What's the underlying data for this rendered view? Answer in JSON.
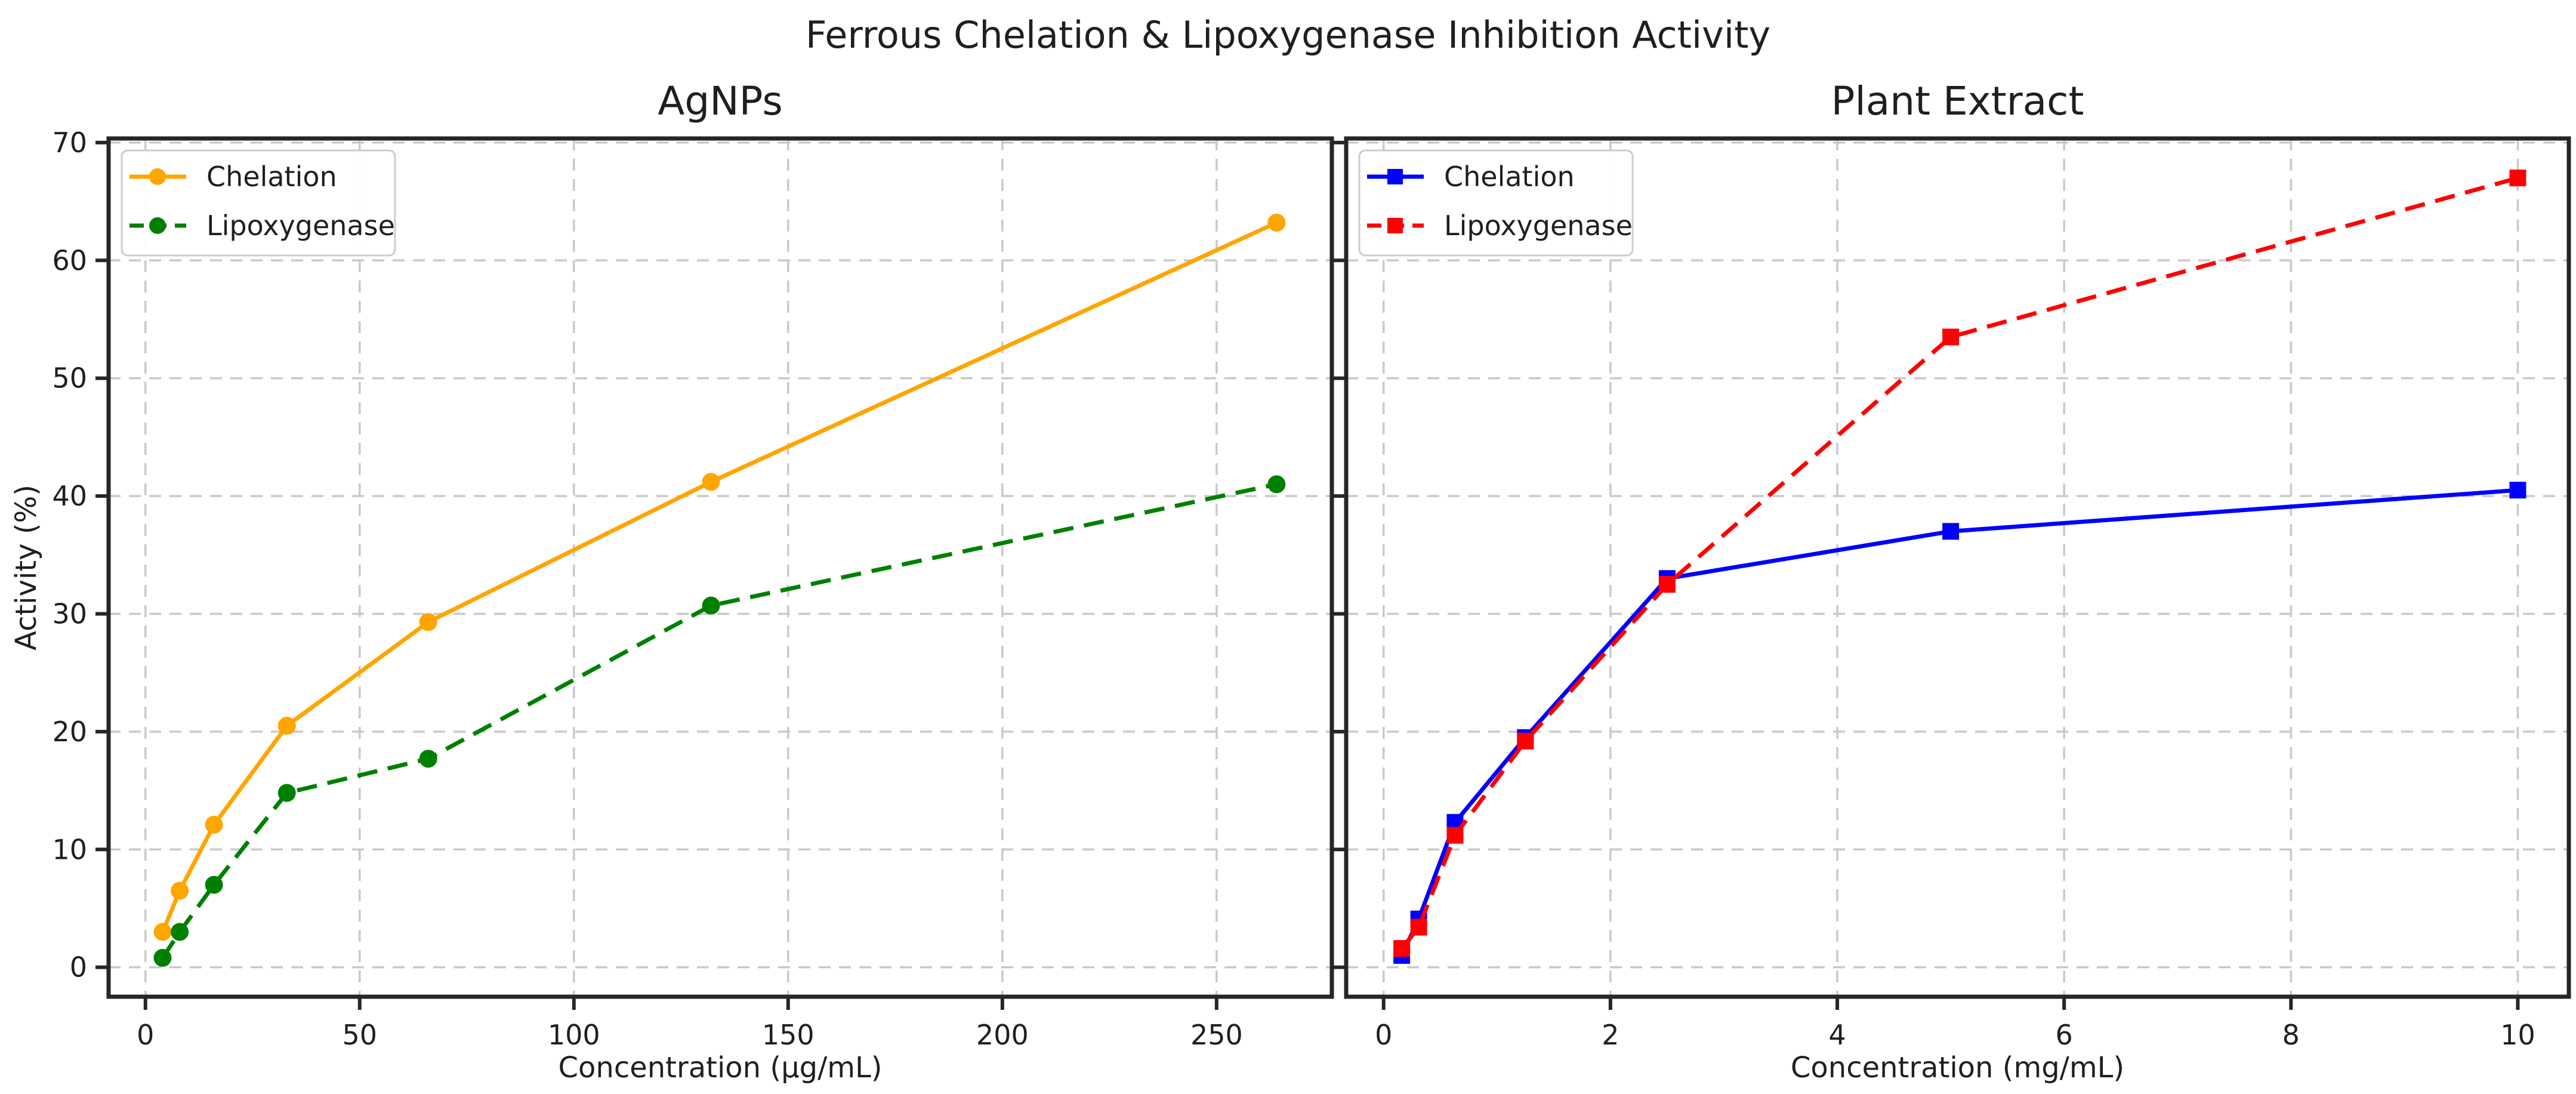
{
  "figure": {
    "title": "Ferrous Chelation & Lipoxygenase Inhibition Activity",
    "background_color": "#ffffff",
    "text_color": "#1f1f1f",
    "grid_color": "#c9c9c9",
    "spine_color": "#262626"
  },
  "chart_data": [
    {
      "type": "line",
      "title": "AgNPs",
      "xlabel": "Concentration (µg/mL)",
      "ylabel": "Activity (%)",
      "xlim": [
        -8.6,
        276.9
      ],
      "ylim": [
        -2.5,
        70.35
      ],
      "xticks": [
        0,
        50,
        100,
        150,
        200,
        250
      ],
      "yticks": [
        0,
        10,
        20,
        30,
        40,
        50,
        60,
        70
      ],
      "show_ytick_labels": true,
      "grid": true,
      "legend_position": "upper-left",
      "x": [
        4,
        8,
        16,
        33,
        66,
        132,
        264
      ],
      "series": [
        {
          "name": "Chelation",
          "color": "#FFA500",
          "linestyle": "solid",
          "marker": "circle",
          "values": [
            3.0,
            6.5,
            12.1,
            20.5,
            29.3,
            41.2,
            63.2
          ]
        },
        {
          "name": "Lipoxygenase",
          "color": "#008000",
          "linestyle": "dashed",
          "marker": "circle",
          "values": [
            0.8,
            3.0,
            7.0,
            14.8,
            17.7,
            30.7,
            41.0
          ]
        }
      ]
    },
    {
      "type": "line",
      "title": "Plant Extract",
      "xlabel": "Concentration (mg/mL)",
      "ylabel": "",
      "xlim": [
        -0.33,
        10.45
      ],
      "ylim": [
        -2.5,
        70.35
      ],
      "xticks": [
        0,
        2,
        4,
        6,
        8,
        10
      ],
      "yticks": [
        0,
        10,
        20,
        30,
        40,
        50,
        60,
        70
      ],
      "show_ytick_labels": false,
      "grid": true,
      "legend_position": "upper-left",
      "x": [
        0.16,
        0.31,
        0.63,
        1.25,
        2.5,
        5,
        10
      ],
      "series": [
        {
          "name": "Chelation",
          "color": "#0000FF",
          "linestyle": "solid",
          "marker": "square",
          "values": [
            1.0,
            4.1,
            12.3,
            19.5,
            33.0,
            37.0,
            40.5
          ]
        },
        {
          "name": "Lipoxygenase",
          "color": "#FF0000",
          "linestyle": "dashed",
          "marker": "square",
          "values": [
            1.6,
            3.4,
            11.2,
            19.2,
            32.5,
            53.5,
            67.0
          ]
        }
      ]
    }
  ]
}
